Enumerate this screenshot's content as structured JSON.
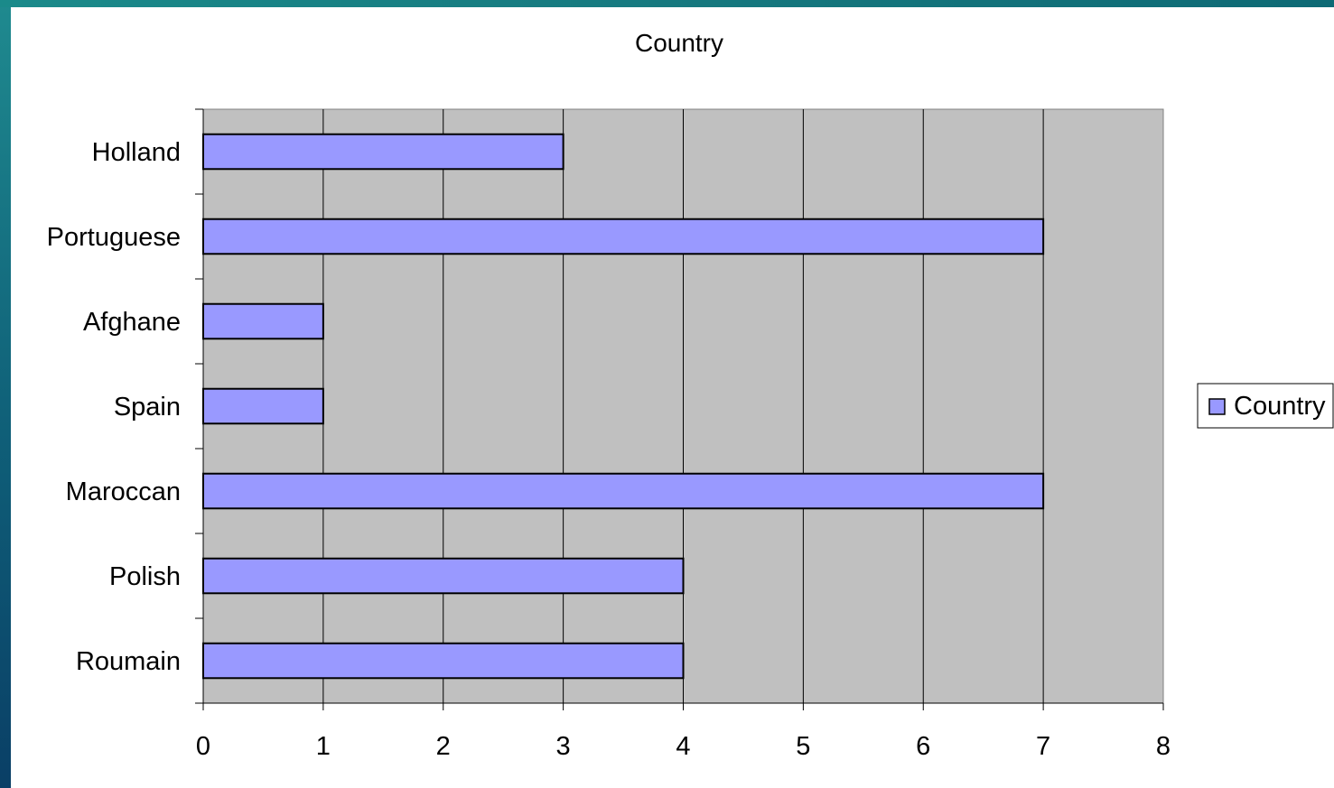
{
  "chart_data": {
    "type": "bar",
    "orientation": "horizontal",
    "title": "Country",
    "categories": [
      "Holland",
      "Portuguese",
      "Afghane",
      "Spain",
      "Maroccan",
      "Polish",
      "Roumain"
    ],
    "series": [
      {
        "name": "Country",
        "values": [
          3,
          7,
          1,
          1,
          7,
          4,
          4
        ]
      }
    ],
    "xlim": [
      0,
      8
    ],
    "xticks": [
      "0",
      "1",
      "2",
      "3",
      "4",
      "5",
      "6",
      "7",
      "8"
    ],
    "grid": true,
    "legend_position": "right",
    "colors": {
      "bar_fill": "#9999ff",
      "bar_stroke": "#000000",
      "plot_background": "#c0c0c0",
      "gridline": "#000000"
    }
  }
}
